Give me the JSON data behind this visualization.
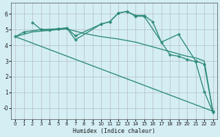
{
  "xlabel": "Humidex (Indice chaleur)",
  "bg_color": "#d4eef4",
  "plot_bg_color": "#d4eef4",
  "grid_color": "#b0b0b0",
  "line_color": "#2e8b7a",
  "xlim": [
    -0.5,
    23.5
  ],
  "ylim": [
    -0.7,
    6.7
  ],
  "xticks": [
    0,
    1,
    2,
    3,
    4,
    5,
    6,
    7,
    8,
    9,
    10,
    11,
    12,
    13,
    14,
    15,
    16,
    17,
    18,
    19,
    20,
    21,
    22,
    23
  ],
  "yticks": [
    0,
    1,
    2,
    3,
    4,
    5,
    6
  ],
  "ytick_labels": [
    "-0",
    "1",
    "2",
    "3",
    "4",
    "5",
    "6"
  ],
  "lines": [
    {
      "x": [
        0,
        23
      ],
      "y": [
        4.55,
        -0.2
      ],
      "marker": null,
      "linewidth": 1.0
    },
    {
      "x": [
        0,
        2,
        4,
        6,
        8,
        10,
        12,
        14,
        16,
        18,
        20,
        21,
        22,
        23
      ],
      "y": [
        4.55,
        4.85,
        4.95,
        5.05,
        4.75,
        4.55,
        4.4,
        4.2,
        3.9,
        3.6,
        3.3,
        3.2,
        3.0,
        -0.2
      ],
      "marker": null,
      "linewidth": 1.0
    },
    {
      "x": [
        2,
        3,
        5,
        6,
        7,
        10,
        11,
        12,
        13,
        14,
        15,
        16,
        17,
        19,
        21,
        22,
        23
      ],
      "y": [
        5.45,
        5.0,
        5.05,
        5.1,
        4.6,
        5.35,
        5.5,
        6.05,
        6.15,
        5.9,
        5.9,
        5.5,
        4.2,
        4.7,
        3.0,
        2.8,
        -0.2
      ],
      "marker": "P",
      "markersize": 2.5,
      "linewidth": 1.0
    },
    {
      "x": [
        0,
        1,
        3,
        4,
        5,
        6,
        7,
        10,
        11,
        12,
        13,
        14,
        15,
        18,
        19,
        20,
        21,
        22,
        23
      ],
      "y": [
        4.55,
        4.85,
        5.0,
        4.95,
        5.05,
        5.1,
        4.35,
        5.35,
        5.5,
        6.05,
        6.15,
        5.85,
        5.85,
        3.4,
        3.3,
        3.1,
        2.95,
        1.05,
        -0.25
      ],
      "marker": "P",
      "markersize": 2.5,
      "linewidth": 1.0
    }
  ]
}
